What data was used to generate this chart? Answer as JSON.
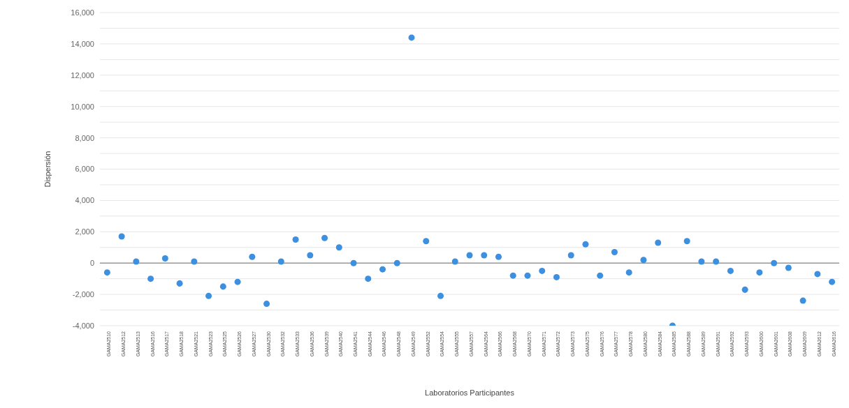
{
  "chart_data": {
    "type": "scatter",
    "xlabel": "Laboratorios Participantes",
    "ylabel": "Dispersión",
    "categories": [
      "GAMA2510",
      "GAMA2512",
      "GAMA2513",
      "GAMA2516",
      "GAMA2517",
      "GAMA2518",
      "GAMA2521",
      "GAMA2523",
      "GAMA2525",
      "GAMA2526",
      "GAMA2527",
      "GAMA2530",
      "GAMA2532",
      "GAMA2533",
      "GAMA2536",
      "GAMA2539",
      "GAMA2540",
      "GAMA2541",
      "GAMA2544",
      "GAMA2546",
      "GAMA2548",
      "GAMA2549",
      "GAMA2552",
      "GAMA2554",
      "GAMA2555",
      "GAMA2557",
      "GAMA2564",
      "GAMA2566",
      "GAMA2568",
      "GAMA2570",
      "GAMA2571",
      "GAMA2572",
      "GAMA2573",
      "GAMA2575",
      "GAMA2576",
      "GAMA2577",
      "GAMA2578",
      "GAMA2580",
      "GAMA2584",
      "GAMA2585",
      "GAMA2588",
      "GAMA2589",
      "GAMA2591",
      "GAMA2592",
      "GAMA2593",
      "GAMA2600",
      "GAMA2601",
      "GAMA2608",
      "GAMA2609",
      "GAMA2612",
      "GAMA2616"
    ],
    "series": [
      {
        "color": "#3d8fe0",
        "values": [
          -600,
          1700,
          100,
          -1000,
          300,
          -1300,
          100,
          -2100,
          -1500,
          -1200,
          400,
          -2600,
          100,
          1500,
          500,
          1600,
          1000,
          0,
          -1000,
          -400,
          0,
          14400,
          1400,
          -2100,
          100,
          500,
          500,
          400,
          -800,
          -800,
          -500,
          -900,
          500,
          1200,
          -800,
          700,
          -600,
          200,
          1300,
          -4000,
          1400,
          100,
          100,
          -500,
          -1700,
          -600,
          0,
          -300,
          -2400,
          -700,
          -1200
        ]
      }
    ],
    "ylim": [
      -4000,
      16000
    ],
    "yticks": [
      {
        "value": -4000,
        "label": "-4,000"
      },
      {
        "value": -3000,
        "label": null
      },
      {
        "value": -2000,
        "label": "-2,000"
      },
      {
        "value": -1000,
        "label": null
      },
      {
        "value": 0,
        "label": "0"
      },
      {
        "value": 1000,
        "label": null
      },
      {
        "value": 2000,
        "label": "2,000"
      },
      {
        "value": 3000,
        "label": null
      },
      {
        "value": 4000,
        "label": "4,000"
      },
      {
        "value": 5000,
        "label": null
      },
      {
        "value": 6000,
        "label": "6,000"
      },
      {
        "value": 7000,
        "label": null
      },
      {
        "value": 8000,
        "label": "8,000"
      },
      {
        "value": 9000,
        "label": null
      },
      {
        "value": 10000,
        "label": "10,000"
      },
      {
        "value": 11000,
        "label": null
      },
      {
        "value": 12000,
        "label": "12,000"
      },
      {
        "value": 13000,
        "label": null
      },
      {
        "value": 14000,
        "label": "14,000"
      },
      {
        "value": 15000,
        "label": null
      },
      {
        "value": 16000,
        "label": "16,000"
      }
    ],
    "ref_lines": [
      {
        "axis": "y",
        "value": 0,
        "color": "#999999"
      }
    ],
    "grid": "y",
    "marker": "circle"
  }
}
